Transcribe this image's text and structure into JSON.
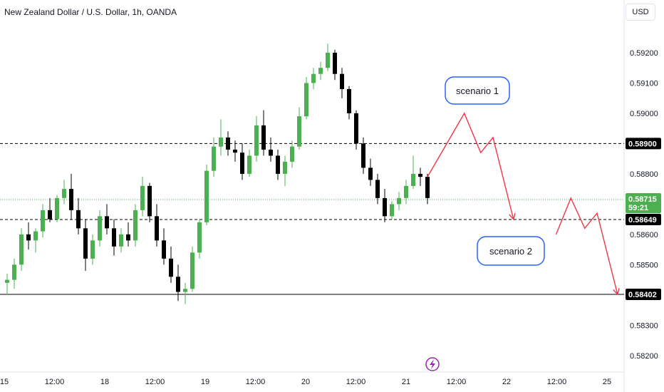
{
  "header": {
    "title": "New Zealand Dollar / U.S. Dollar, 1h, OANDA",
    "currency_button": "USD"
  },
  "colors": {
    "up": "#26a69a",
    "up_candle": "#4caf50",
    "down": "#000000",
    "scenario_arrow": "#f23645",
    "annotation_border": "#2962ff",
    "current_price_label": "#4caf50",
    "level_label": "#000000"
  },
  "chart_data": {
    "type": "candlestick",
    "symbol": "NZDUSD",
    "interval": "1h",
    "ylim": [
      0.5815,
      0.5928
    ],
    "y_ticks": [
      "0.59200",
      "0.59100",
      "0.59000",
      "0.58800",
      "0.58600",
      "0.58500",
      "0.58300",
      "0.58200"
    ],
    "x_ticks": [
      "15",
      "12:00",
      "18",
      "12:00",
      "19",
      "12:00",
      "20",
      "12:00",
      "21",
      "12:00",
      "22",
      "12:00",
      "25"
    ],
    "levels": [
      {
        "label": "0.58900",
        "value": 0.589,
        "style": "dashed"
      },
      {
        "label": "0.58649",
        "value": 0.58649,
        "style": "dashed"
      },
      {
        "label": "0.58402",
        "value": 0.58402,
        "style": "solid"
      }
    ],
    "current_price": {
      "label": "0.58715",
      "value": 0.58715,
      "countdown": "59:21"
    },
    "candles": [
      [
        0.5844,
        0.5847,
        0.584,
        0.5845
      ],
      [
        0.5845,
        0.5852,
        0.5842,
        0.585
      ],
      [
        0.585,
        0.5862,
        0.5848,
        0.586
      ],
      [
        0.586,
        0.5864,
        0.5855,
        0.5858
      ],
      [
        0.5858,
        0.5862,
        0.5854,
        0.5861
      ],
      [
        0.5861,
        0.587,
        0.5859,
        0.5868
      ],
      [
        0.5868,
        0.5872,
        0.5864,
        0.5865
      ],
      [
        0.5865,
        0.5873,
        0.5864,
        0.5872
      ],
      [
        0.5872,
        0.5878,
        0.587,
        0.5875
      ],
      [
        0.5875,
        0.588,
        0.5865,
        0.5868
      ],
      [
        0.5868,
        0.5872,
        0.586,
        0.5862
      ],
      [
        0.5862,
        0.5865,
        0.5848,
        0.5852
      ],
      [
        0.5852,
        0.586,
        0.585,
        0.5858
      ],
      [
        0.5858,
        0.5868,
        0.5856,
        0.5866
      ],
      [
        0.5866,
        0.587,
        0.586,
        0.5862
      ],
      [
        0.5862,
        0.5865,
        0.5853,
        0.5856
      ],
      [
        0.5856,
        0.5862,
        0.5854,
        0.586
      ],
      [
        0.586,
        0.5864,
        0.5856,
        0.5858
      ],
      [
        0.5858,
        0.587,
        0.5856,
        0.5868
      ],
      [
        0.5868,
        0.5879,
        0.5866,
        0.5876
      ],
      [
        0.5876,
        0.5877,
        0.5864,
        0.5866
      ],
      [
        0.5866,
        0.587,
        0.5856,
        0.5858
      ],
      [
        0.5858,
        0.5862,
        0.585,
        0.5852
      ],
      [
        0.5852,
        0.5856,
        0.5844,
        0.5846
      ],
      [
        0.5846,
        0.585,
        0.5838,
        0.5841
      ],
      [
        0.5841,
        0.5844,
        0.5837,
        0.5842
      ],
      [
        0.5842,
        0.5856,
        0.5841,
        0.5854
      ],
      [
        0.5854,
        0.5865,
        0.5852,
        0.5864
      ],
      [
        0.5864,
        0.5883,
        0.5863,
        0.5881
      ],
      [
        0.5881,
        0.5892,
        0.5879,
        0.5889
      ],
      [
        0.5889,
        0.5898,
        0.5886,
        0.5892
      ],
      [
        0.5892,
        0.5894,
        0.5886,
        0.5888
      ],
      [
        0.5888,
        0.5891,
        0.5884,
        0.5887
      ],
      [
        0.5887,
        0.589,
        0.5878,
        0.588
      ],
      [
        0.588,
        0.5888,
        0.5879,
        0.5886
      ],
      [
        0.5886,
        0.5899,
        0.5884,
        0.5896
      ],
      [
        0.5896,
        0.5901,
        0.5886,
        0.5888
      ],
      [
        0.5888,
        0.5892,
        0.5884,
        0.5886
      ],
      [
        0.5886,
        0.5888,
        0.5878,
        0.588
      ],
      [
        0.588,
        0.5886,
        0.5876,
        0.5884
      ],
      [
        0.5884,
        0.5891,
        0.5882,
        0.5889
      ],
      [
        0.5889,
        0.5902,
        0.5888,
        0.5899
      ],
      [
        0.5899,
        0.5912,
        0.5898,
        0.591
      ],
      [
        0.591,
        0.5915,
        0.5908,
        0.5913
      ],
      [
        0.5913,
        0.5917,
        0.5911,
        0.5915
      ],
      [
        0.5915,
        0.5923,
        0.5914,
        0.592
      ],
      [
        0.592,
        0.5921,
        0.5911,
        0.5913
      ],
      [
        0.5913,
        0.5915,
        0.5905,
        0.5908
      ],
      [
        0.5908,
        0.5909,
        0.5898,
        0.59
      ],
      [
        0.59,
        0.5901,
        0.5888,
        0.589
      ],
      [
        0.589,
        0.5892,
        0.588,
        0.5882
      ],
      [
        0.5882,
        0.5885,
        0.5876,
        0.5878
      ],
      [
        0.5878,
        0.588,
        0.587,
        0.5872
      ],
      [
        0.5872,
        0.5875,
        0.5864,
        0.5866
      ],
      [
        0.5866,
        0.5871,
        0.5865,
        0.587
      ],
      [
        0.587,
        0.5874,
        0.5868,
        0.5872
      ],
      [
        0.5872,
        0.5878,
        0.587,
        0.5876
      ],
      [
        0.5876,
        0.5886,
        0.5875,
        0.588
      ],
      [
        0.588,
        0.5882,
        0.5876,
        0.5879
      ],
      [
        0.5879,
        0.588,
        0.587,
        0.5872
      ]
    ],
    "projections": [
      {
        "label": "scenario 1",
        "path": [
          [
            0.5879,
            0
          ],
          [
            0.59,
            4.5
          ],
          [
            0.5887,
            6.5
          ],
          [
            0.5892,
            8
          ],
          [
            0.5865,
            10.5
          ]
        ]
      },
      {
        "label": "scenario  2",
        "path": [
          [
            0.586,
            15.7
          ],
          [
            0.5872,
            17.5
          ],
          [
            0.5862,
            19.2
          ],
          [
            0.5867,
            20.7
          ],
          [
            0.58402,
            23.2
          ]
        ]
      }
    ]
  }
}
